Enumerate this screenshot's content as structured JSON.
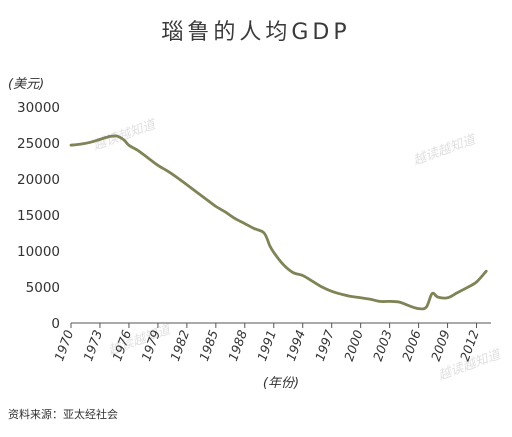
{
  "chart_data": {
    "type": "line",
    "title": "瑙鲁的人均GDP",
    "ylabel": "(美元)",
    "xlabel": "(年份)",
    "xlim": [
      1970,
      2013.5
    ],
    "ylim": [
      0,
      30000
    ],
    "yticks": [
      0,
      5000,
      10000,
      15000,
      20000,
      25000,
      30000
    ],
    "xticks": [
      1970,
      1973,
      1976,
      1979,
      1982,
      1985,
      1988,
      1991,
      1994,
      1997,
      2000,
      2003,
      2006,
      2009,
      2012
    ],
    "grid": false,
    "line_color": "#7f8356",
    "series": [
      {
        "x": [
          1970,
          1971,
          1972,
          1973,
          1974,
          1974.8,
          1975.5,
          1976,
          1977,
          1978,
          1979,
          1980,
          1981,
          1982,
          1983,
          1984,
          1985,
          1986,
          1987,
          1988,
          1989,
          1990,
          1990.6,
          1991,
          1992,
          1993,
          1994,
          1995,
          1996,
          1997,
          1998,
          1999,
          2000,
          2001,
          2002,
          2003,
          2004,
          2005,
          2006,
          2006.8,
          2007.4,
          2008,
          2009,
          2010,
          2011,
          2012,
          2013
        ],
        "y": [
          24700,
          24850,
          25100,
          25500,
          25900,
          25950,
          25400,
          24700,
          23900,
          22900,
          21900,
          21100,
          20200,
          19200,
          18200,
          17200,
          16200,
          15400,
          14500,
          13800,
          13100,
          12500,
          10700,
          9800,
          8100,
          7000,
          6600,
          5800,
          5000,
          4400,
          4000,
          3700,
          3500,
          3300,
          3000,
          3000,
          2900,
          2400,
          2000,
          2200,
          4100,
          3600,
          3500,
          4200,
          4900,
          5700,
          7200
        ]
      }
    ]
  },
  "source_note": "资料来源：亚太经社会",
  "watermark_text": "越读越知道"
}
